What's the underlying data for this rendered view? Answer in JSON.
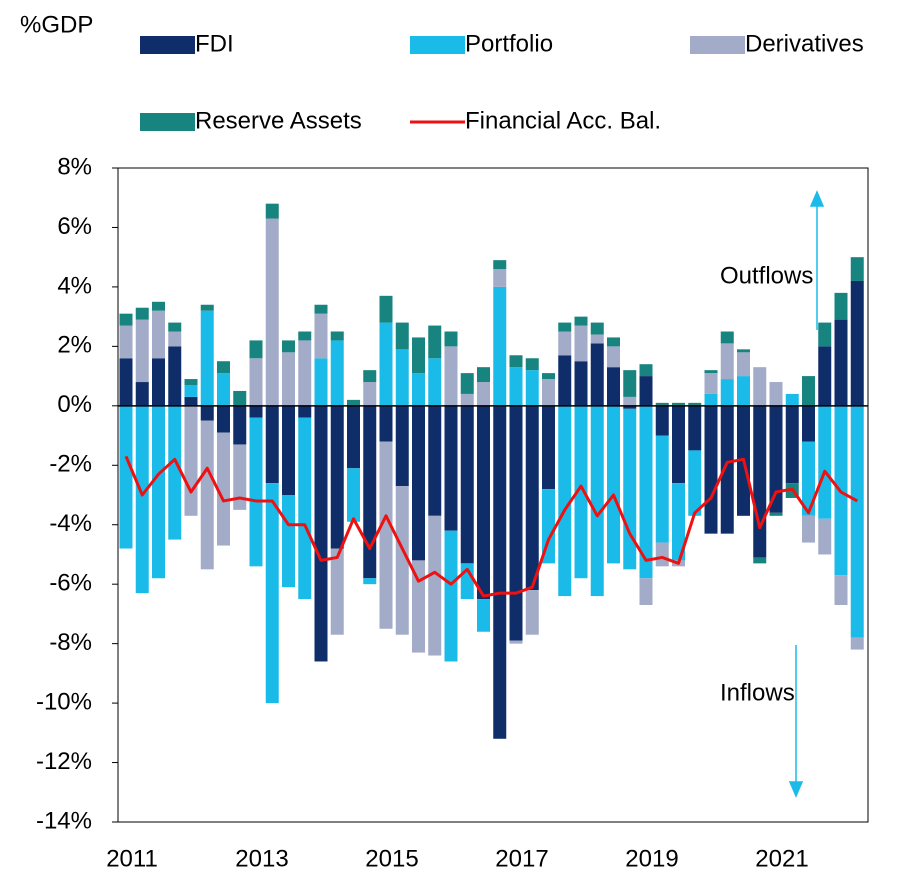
{
  "chart_data": {
    "type": "bar",
    "stacked": true,
    "y_label": "%GDP",
    "annotations": [
      "Outflows",
      "Inflows"
    ],
    "categories": [
      "2011",
      null,
      null,
      null,
      null,
      null,
      null,
      null,
      "2013",
      null,
      null,
      null,
      null,
      null,
      null,
      null,
      "2015",
      null,
      null,
      null,
      null,
      null,
      null,
      null,
      "2017",
      null,
      null,
      null,
      null,
      null,
      null,
      null,
      "2019",
      null,
      null,
      null,
      null,
      null,
      null,
      null,
      "2021",
      null,
      null,
      null,
      null,
      null
    ],
    "series": [
      {
        "name": "FDI",
        "color": "#0f2d69",
        "values": [
          1.6,
          0.8,
          1.6,
          2.0,
          0.3,
          -0.5,
          -0.9,
          -1.3,
          -0.4,
          -2.6,
          -3.0,
          -0.4,
          -8.6,
          -4.8,
          -2.1,
          -5.8,
          -1.2,
          -2.7,
          -5.2,
          -3.7,
          -4.2,
          -5.3,
          -6.5,
          -11.2,
          -7.9,
          -6.2,
          -2.8,
          1.7,
          1.5,
          2.1,
          1.3,
          -0.1,
          1.0,
          -1.0,
          -2.6,
          -1.5,
          -4.3,
          -4.3,
          -3.7,
          -5.1,
          -3.6,
          -2.6,
          -1.2,
          2.0,
          2.9,
          4.2
        ]
      },
      {
        "name": "Portfolio",
        "color": "#1bbbe9",
        "values": [
          -4.8,
          -6.3,
          -5.8,
          -4.5,
          0.4,
          3.2,
          1.1,
          0,
          -5.0,
          -7.4,
          -3.1,
          -6.1,
          1.6,
          2.2,
          -1.8,
          -0.2,
          2.8,
          1.9,
          1.1,
          1.6,
          -4.4,
          -1.2,
          -1.1,
          4.0,
          1.3,
          1.2,
          -2.5,
          -6.4,
          -5.8,
          -6.4,
          -5.3,
          -5.4,
          -5.8,
          -3.6,
          -2.6,
          -2.2,
          0.4,
          0.9,
          1.0,
          0,
          0,
          0.4,
          -2.5,
          -3.8,
          -5.7,
          -7.8
        ]
      },
      {
        "name": "Derivatives",
        "color": "#a2abc8",
        "values": [
          1.1,
          2.1,
          1.6,
          0.5,
          -3.7,
          -5.0,
          -3.8,
          -2.2,
          1.6,
          6.3,
          1.8,
          2.2,
          1.5,
          -2.9,
          0,
          0.8,
          -6.3,
          -5.0,
          -3.1,
          -4.7,
          2.0,
          0.4,
          0.8,
          0.6,
          -0.1,
          -1.5,
          0.9,
          0.8,
          1.2,
          0.3,
          0.7,
          0.3,
          -0.9,
          -0.8,
          -0.2,
          0,
          0.7,
          1.2,
          0.8,
          1.3,
          0.8,
          0,
          -0.9,
          -1.2,
          -1.0,
          -0.4
        ]
      },
      {
        "name": "Reserve Assets",
        "color": "#17847f",
        "values": [
          0.4,
          0.4,
          0.3,
          0.3,
          0.2,
          0.2,
          0.4,
          0.5,
          0.6,
          0.5,
          0.4,
          0.3,
          0.3,
          0.3,
          0.2,
          0.4,
          0.9,
          0.9,
          1.2,
          1.1,
          0.5,
          0.7,
          0.5,
          0.3,
          0.4,
          0.4,
          0.2,
          0.3,
          0.3,
          0.4,
          0.3,
          0.9,
          0.4,
          0.1,
          0.1,
          0.1,
          0.1,
          0.4,
          0.1,
          -0.2,
          -0.1,
          -0.5,
          1.0,
          0.8,
          0.9,
          0.8
        ]
      },
      {
        "name": "Financial Acc. Bal.",
        "type": "line",
        "color": "#ee1111",
        "values": [
          -1.7,
          -3.0,
          -2.3,
          -1.8,
          -2.9,
          -2.1,
          -3.2,
          -3.1,
          -3.2,
          -3.2,
          -4.0,
          -4.0,
          -5.2,
          -5.1,
          -3.8,
          -4.8,
          -3.7,
          -4.8,
          -5.9,
          -5.6,
          -6.0,
          -5.5,
          -6.4,
          -6.3,
          -6.3,
          -6.1,
          -4.5,
          -3.5,
          -2.7,
          -3.7,
          -3.0,
          -4.3,
          -5.2,
          -5.1,
          -5.3,
          -3.6,
          -3.1,
          -1.9,
          -1.8,
          -4.1,
          -2.9,
          -2.8,
          -3.6,
          -2.2,
          -2.9,
          -3.2
        ]
      }
    ],
    "ylim": [
      -14,
      8
    ],
    "yticks": [
      {
        "value": -14,
        "label": "-14%"
      },
      {
        "value": -12,
        "label": "-12%"
      },
      {
        "value": -10,
        "label": "-10%"
      },
      {
        "value": -8,
        "label": "-8%"
      },
      {
        "value": -6,
        "label": "-6%"
      },
      {
        "value": -4,
        "label": "-4%"
      },
      {
        "value": -2,
        "label": "-2%"
      },
      {
        "value": 0,
        "label": "0%"
      },
      {
        "value": 2,
        "label": "2%"
      },
      {
        "value": 4,
        "label": "4%"
      },
      {
        "value": 6,
        "label": "6%"
      },
      {
        "value": 8,
        "label": "8%"
      }
    ]
  }
}
